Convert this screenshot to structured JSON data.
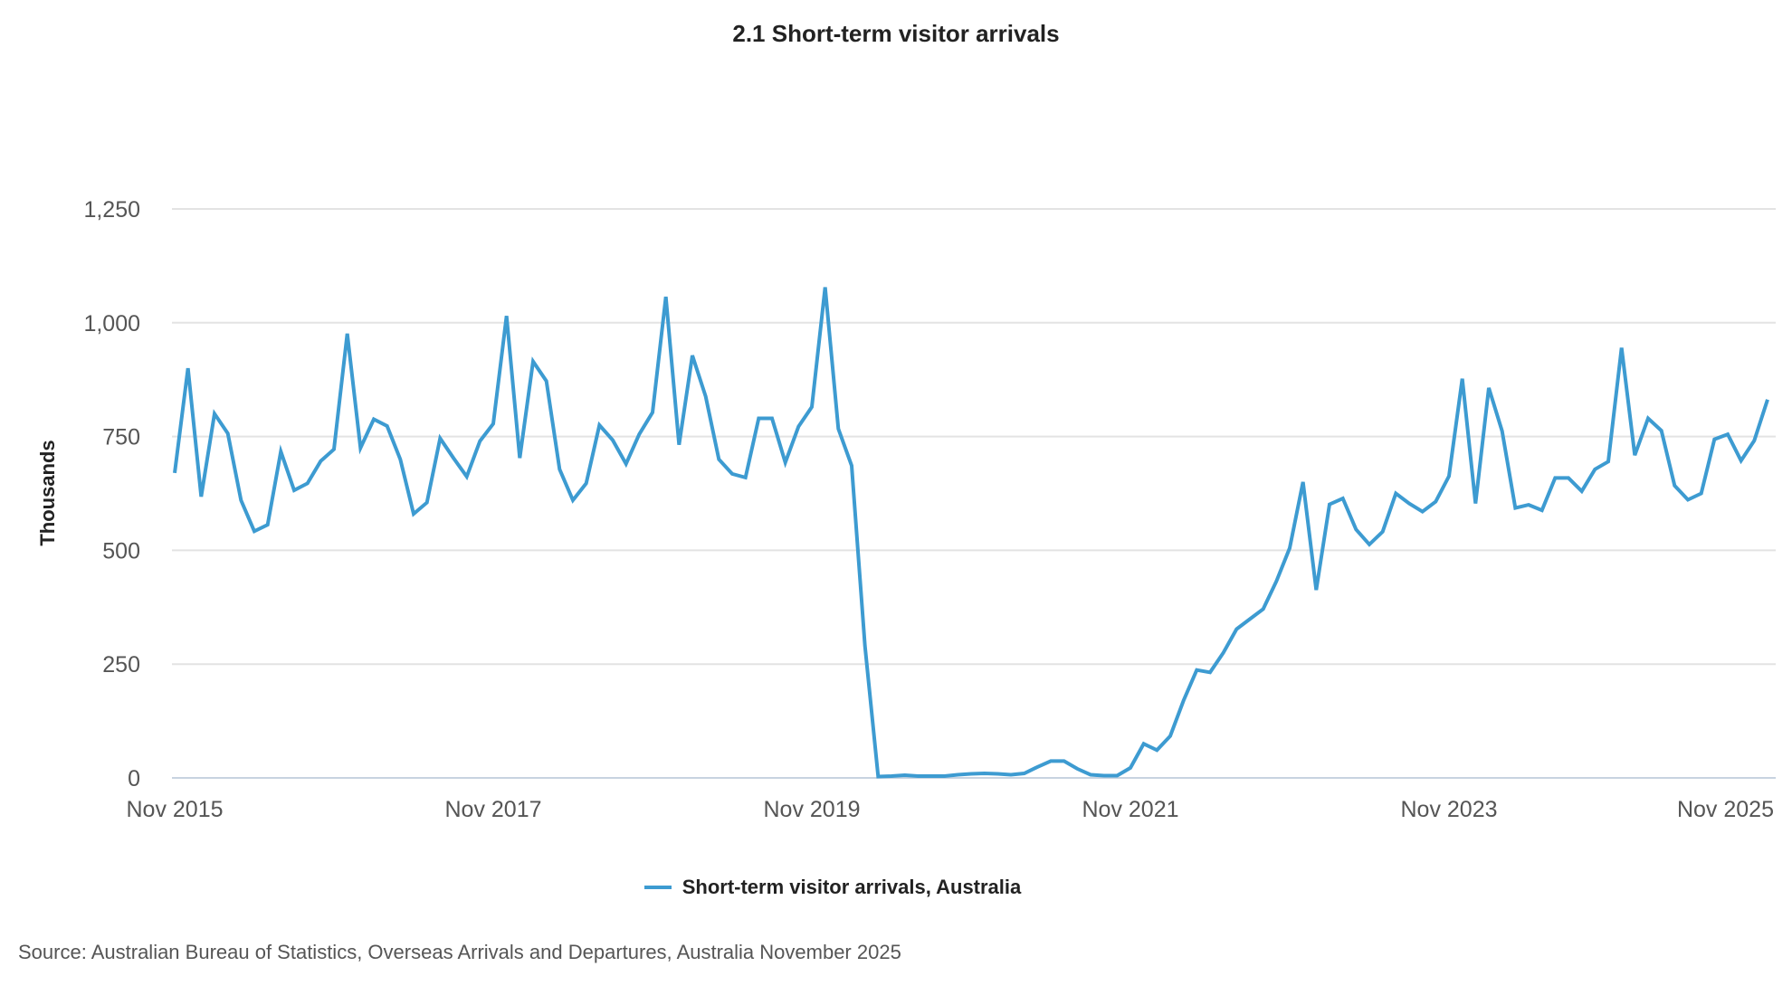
{
  "chart_data": {
    "type": "line",
    "title": "2.1 Short-term visitor arrivals",
    "ylabel": "Thousands",
    "xlabel": "",
    "ylim": [
      0,
      1250
    ],
    "yticks": [
      0,
      250,
      500,
      750,
      1000,
      1250
    ],
    "ytick_labels": [
      "0",
      "250",
      "500",
      "750",
      "1,000",
      "1,250"
    ],
    "xtick_labels": [
      "Nov 2015",
      "Nov 2017",
      "Nov 2019",
      "Nov 2021",
      "Nov 2023",
      "Nov 2025"
    ],
    "grid": "horizontal",
    "legend_position": "bottom",
    "x": [
      "2015-11",
      "2015-12",
      "2016-01",
      "2016-02",
      "2016-03",
      "2016-04",
      "2016-05",
      "2016-06",
      "2016-07",
      "2016-08",
      "2016-09",
      "2016-10",
      "2016-11",
      "2016-12",
      "2017-01",
      "2017-02",
      "2017-03",
      "2017-04",
      "2017-05",
      "2017-06",
      "2017-07",
      "2017-08",
      "2017-09",
      "2017-10",
      "2017-11",
      "2017-12",
      "2018-01",
      "2018-02",
      "2018-03",
      "2018-04",
      "2018-05",
      "2018-06",
      "2018-07",
      "2018-08",
      "2018-09",
      "2018-10",
      "2018-11",
      "2018-12",
      "2019-01",
      "2019-02",
      "2019-03",
      "2019-04",
      "2019-05",
      "2019-06",
      "2019-07",
      "2019-08",
      "2019-09",
      "2019-10",
      "2019-11",
      "2019-12",
      "2020-01",
      "2020-02",
      "2020-03",
      "2020-04",
      "2020-05",
      "2020-06",
      "2020-07",
      "2020-08",
      "2020-09",
      "2020-10",
      "2020-11",
      "2020-12",
      "2021-01",
      "2021-02",
      "2021-03",
      "2021-04",
      "2021-05",
      "2021-06",
      "2021-07",
      "2021-08",
      "2021-09",
      "2021-10",
      "2021-11",
      "2021-12",
      "2022-01",
      "2022-02",
      "2022-03",
      "2022-04",
      "2022-05",
      "2022-06",
      "2022-07",
      "2022-08",
      "2022-09",
      "2022-10",
      "2022-11",
      "2022-12",
      "2023-01",
      "2023-02",
      "2023-03",
      "2023-04",
      "2023-05",
      "2023-06",
      "2023-07",
      "2023-08",
      "2023-09",
      "2023-10",
      "2023-11",
      "2023-12",
      "2024-01",
      "2024-02",
      "2024-03",
      "2024-04",
      "2024-05",
      "2024-06",
      "2024-07",
      "2024-08",
      "2024-09",
      "2024-10",
      "2024-11",
      "2024-12",
      "2025-01",
      "2025-02",
      "2025-03",
      "2025-04",
      "2025-05",
      "2025-06",
      "2025-07",
      "2025-08",
      "2025-09",
      "2025-10",
      "2025-11"
    ],
    "series": [
      {
        "name": "Short-term visitor arrivals, Australia",
        "color": "#3d9bd1",
        "values": [
          670,
          900,
          618,
          800,
          757,
          610,
          542,
          556,
          717,
          632,
          647,
          696,
          722,
          976,
          725,
          788,
          773,
          700,
          580,
          605,
          746,
          703,
          662,
          740,
          778,
          1015,
          703,
          915,
          872,
          678,
          610,
          647,
          775,
          742,
          690,
          755,
          803,
          1057,
          732,
          928,
          838,
          700,
          668,
          660,
          790,
          790,
          693,
          772,
          815,
          1078,
          767,
          686,
          290,
          3,
          4,
          6,
          4,
          4,
          4,
          7,
          9,
          10,
          9,
          7,
          10,
          24,
          37,
          37,
          20,
          7,
          5,
          5,
          22,
          75,
          61,
          92,
          170,
          237,
          232,
          275,
          327,
          349,
          371,
          432,
          505,
          650,
          413,
          601,
          614,
          546,
          513,
          541,
          625,
          603,
          585,
          607,
          663,
          877,
          603,
          857,
          762,
          593,
          600,
          588,
          659,
          659,
          630,
          678,
          695,
          945,
          709,
          790,
          763,
          642,
          611,
          625,
          744,
          755,
          697,
          741,
          831
        ]
      }
    ],
    "source": "Source: Australian Bureau of Statistics, Overseas Arrivals and Departures, Australia November 2025"
  }
}
